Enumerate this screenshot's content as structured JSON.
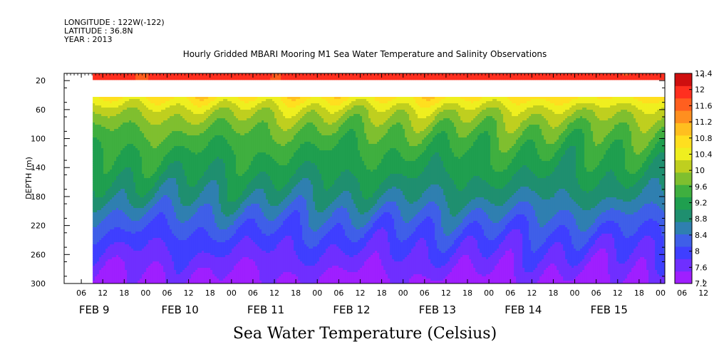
{
  "header": {
    "longitude": "LONGITUDE : 122W(-122)",
    "latitude": "LATITUDE : 36.8N",
    "year": "YEAR : 2013",
    "title": "Hourly Gridded MBARI Mooring M1 Sea Water Temperature and Salinity Observations"
  },
  "caption": "Sea Water Temperature (Celsius)",
  "chart_data": {
    "type": "heatmap",
    "title": "Hourly Gridded MBARI Mooring M1 Sea Water Temperature and Salinity Observations",
    "xlabel": "",
    "ylabel": "DEPTH (m)",
    "colorbar_label": "Sea Water Temperature (Celsius)",
    "y_reversed": true,
    "y_range": [
      300,
      10
    ],
    "y_ticks": [
      20,
      60,
      100,
      140,
      180,
      220,
      260,
      300
    ],
    "x_range_hours": [
      0,
      168
    ],
    "x_tick_labels": [
      "06",
      "12",
      "18",
      "00",
      "06",
      "12",
      "18",
      "00",
      "06",
      "12",
      "18",
      "00",
      "06",
      "12",
      "18",
      "00",
      "06",
      "12",
      "18",
      "00",
      "06",
      "12",
      "18",
      "00",
      "06",
      "12",
      "18",
      "00",
      "06",
      "12",
      "18",
      "00"
    ],
    "date_labels": [
      "FEB  9",
      "FEB 10",
      "FEB 11",
      "FEB 12",
      "FEB 13",
      "FEB 14",
      "FEB 15"
    ],
    "data_start": "2013-02-09T08:00",
    "missing_depth_band_m": [
      20,
      40
    ],
    "colorbar_levels": [
      7.2,
      7.6,
      8,
      8.4,
      8.8,
      9.2,
      9.6,
      10,
      10.4,
      10.8,
      11.2,
      11.6,
      12,
      12.4
    ],
    "colorbar_colors": [
      "#9f1fff",
      "#6f2fff",
      "#3f3fff",
      "#3f5fe8",
      "#2f7fb0",
      "#1f8f6f",
      "#1f9f4f",
      "#3faf3f",
      "#7fbf2f",
      "#bfcf1f",
      "#efef1f",
      "#ffdf1f",
      "#ffbf1f",
      "#ff8f1f",
      "#ff5f1f",
      "#ff2f1f",
      "#cf0f0f"
    ],
    "depth_profile": [
      {
        "depth": 10,
        "temp": 11.9
      },
      {
        "depth": 20,
        "temp": 11.9
      },
      {
        "depth": 40,
        "temp": 10.7
      },
      {
        "depth": 60,
        "temp": 10.1
      },
      {
        "depth": 80,
        "temp": 9.75
      },
      {
        "depth": 100,
        "temp": 9.5
      },
      {
        "depth": 120,
        "temp": 9.3
      },
      {
        "depth": 140,
        "temp": 9.15
      },
      {
        "depth": 160,
        "temp": 8.95
      },
      {
        "depth": 180,
        "temp": 8.75
      },
      {
        "depth": 200,
        "temp": 8.45
      },
      {
        "depth": 220,
        "temp": 8.2
      },
      {
        "depth": 240,
        "temp": 7.95
      },
      {
        "depth": 260,
        "temp": 7.75
      },
      {
        "depth": 280,
        "temp": 7.55
      },
      {
        "depth": 300,
        "temp": 7.35
      }
    ]
  }
}
